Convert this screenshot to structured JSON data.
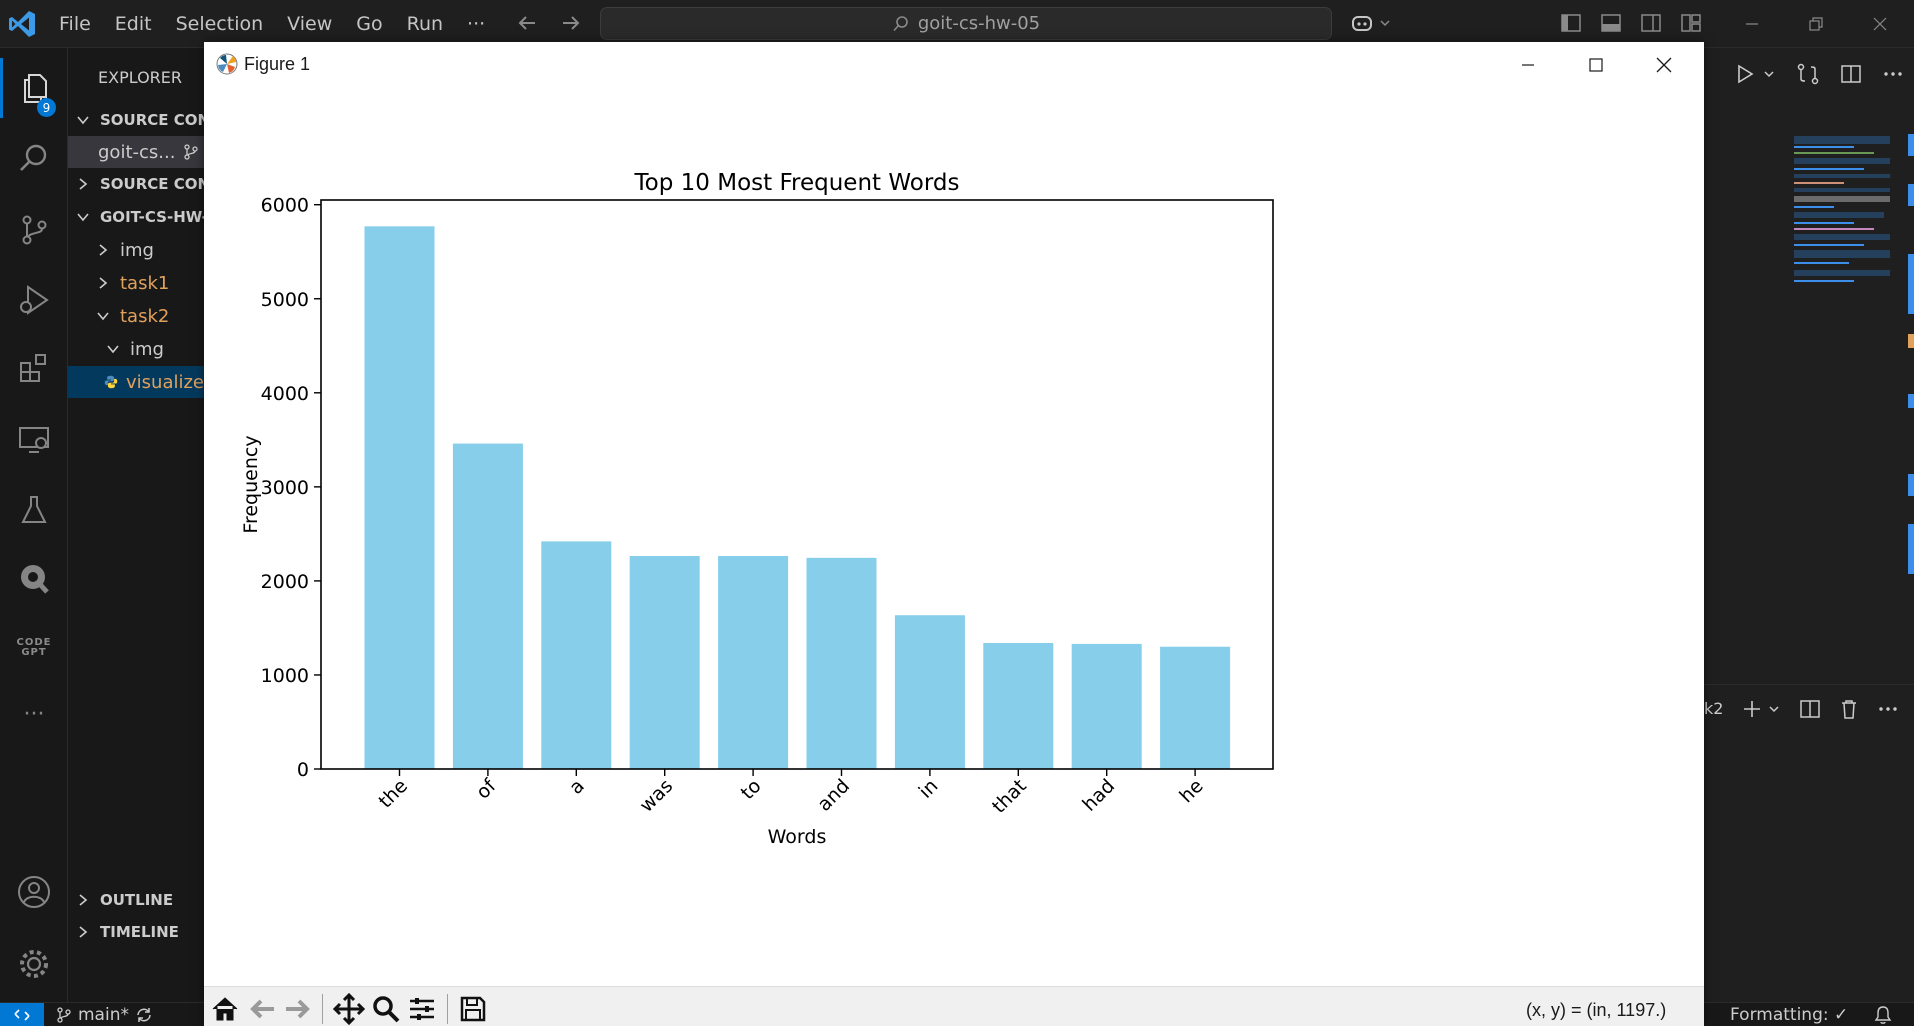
{
  "titlebar": {
    "menu": [
      "File",
      "Edit",
      "Selection",
      "View",
      "Go",
      "Run",
      "···"
    ],
    "search_text": "goit-cs-hw-05"
  },
  "activitybar": {
    "explorer_badge": "9",
    "codegpt_label_1": "CODE",
    "codegpt_label_2": "GPT",
    "more_label": "···"
  },
  "sidebar": {
    "title": "EXPLORER",
    "items": [
      {
        "label": "SOURCE CONT",
        "type": "section",
        "chevron": "down"
      },
      {
        "label": "goit-cs...",
        "type": "repo"
      },
      {
        "label": "SOURCE CONT",
        "type": "section",
        "chevron": "right"
      },
      {
        "label": "GOIT-CS-HW-",
        "type": "section",
        "chevron": "down"
      },
      {
        "label": "img",
        "type": "folder",
        "chevron": "right"
      },
      {
        "label": "task1",
        "type": "folder",
        "chevron": "right"
      },
      {
        "label": "task2",
        "type": "folder",
        "chevron": "down"
      },
      {
        "label": "img",
        "type": "folder",
        "chevron": "down"
      },
      {
        "label": "visualize",
        "type": "file"
      }
    ],
    "outline": "OUTLINE",
    "timeline": "TIMELINE"
  },
  "right_editor": {
    "terminal_label": "k2"
  },
  "statusbar": {
    "branch": "main*",
    "formatting": "Formatting: ✓"
  },
  "figure_window": {
    "title": "Figure 1",
    "coords": "(x, y) = (in, 1197.)"
  },
  "chart_data": {
    "type": "bar",
    "title": "Top 10 Most Frequent Words",
    "xlabel": "Words",
    "ylabel": "Frequency",
    "categories": [
      "the",
      "of",
      "a",
      "was",
      "to",
      "and",
      "in",
      "that",
      "had",
      "he"
    ],
    "values": [
      5770,
      3460,
      2420,
      2265,
      2265,
      2245,
      1635,
      1340,
      1330,
      1300
    ],
    "ylim": [
      0,
      6050
    ],
    "yticks": [
      0,
      1000,
      2000,
      3000,
      4000,
      5000,
      6000
    ],
    "bar_color": "#87ceeb",
    "grid": false
  }
}
